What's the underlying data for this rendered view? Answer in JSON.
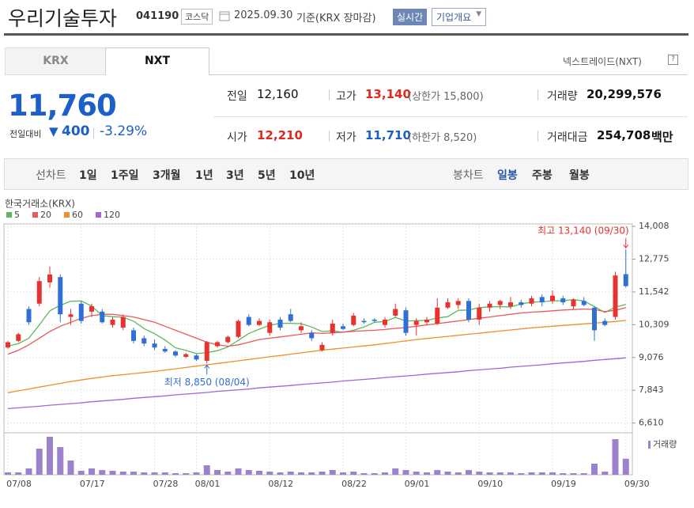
{
  "header": {
    "title": "우리기술투자",
    "code": "041190",
    "market": "코스닥",
    "date": "2025.09.30",
    "basis": "기준(KRX 장마감)",
    "buttons": [
      "실시간",
      "기업개요"
    ]
  },
  "tabs": [
    "KRX",
    "NXT"
  ],
  "nxt_link": "넥스트레이드(NXT)",
  "quote": {
    "price": "11,760",
    "change_label": "전일대비",
    "change": "400",
    "change_rate": "-3.29%"
  },
  "stats": [
    {
      "label": "전일",
      "value": "12,160"
    },
    {
      "label": "고가",
      "value": "13,140",
      "note": "(상한가 15,800)"
    },
    {
      "label": "거래량",
      "value": "20,299,576"
    },
    {
      "label": "시가",
      "value": "12,210"
    },
    {
      "label": "저가",
      "value": "11,710",
      "note": "(하한가 8,520)"
    },
    {
      "label": "거래대금",
      "value": "254,708",
      "unit": "백만"
    }
  ],
  "periods": {
    "line_label": "선차트",
    "line": [
      "1일",
      "1주일",
      "3개월",
      "1년",
      "3년",
      "5년",
      "10년"
    ],
    "candle_label": "봉차트",
    "candle": [
      "일봉",
      "주봉",
      "월봉"
    ]
  },
  "chart_data": {
    "type": "candlestick",
    "source": "한국거래소(KRX)",
    "categories": [
      "07/08",
      null,
      null,
      null,
      null,
      null,
      null,
      "07/17",
      null,
      null,
      null,
      null,
      null,
      null,
      "07/28",
      null,
      null,
      null,
      "08/01",
      null,
      null,
      null,
      null,
      null,
      null,
      "08/12",
      null,
      null,
      null,
      null,
      null,
      null,
      "08/22",
      null,
      null,
      null,
      null,
      null,
      "09/01",
      null,
      null,
      null,
      null,
      null,
      null,
      "09/10",
      null,
      null,
      null,
      null,
      null,
      null,
      "09/19",
      null,
      null,
      null,
      null,
      null,
      null,
      "09/30"
    ],
    "open": [
      9450,
      9700,
      10900,
      11100,
      11900,
      12100,
      10600,
      11100,
      10800,
      10800,
      10300,
      10200,
      10100,
      9800,
      9600,
      9400,
      9300,
      9100,
      9150,
      8950,
      9500,
      9650,
      9850,
      10600,
      10300,
      10000,
      10500,
      10700,
      10100,
      10000,
      9350,
      10000,
      10250,
      10300,
      10450,
      10500,
      10300,
      10650,
      10850,
      10300,
      10400,
      10350,
      10950,
      11050,
      11200,
      10500,
      10950,
      11050,
      11000,
      11150,
      11100,
      11350,
      11200,
      11300,
      11000,
      11200,
      10950,
      10450,
      10600,
      12210
    ],
    "high": [
      9700,
      10000,
      11000,
      12100,
      12500,
      12200,
      10900,
      11200,
      11100,
      10900,
      10600,
      10700,
      10200,
      9900,
      9750,
      9500,
      9350,
      9250,
      9200,
      9700,
      9700,
      9900,
      10500,
      10700,
      10550,
      10500,
      10600,
      10900,
      10400,
      10100,
      9650,
      10500,
      10350,
      10750,
      10550,
      10550,
      10600,
      11100,
      10950,
      10550,
      10600,
      11300,
      11300,
      11300,
      11300,
      11100,
      11200,
      11250,
      11350,
      11250,
      11400,
      11450,
      11600,
      11400,
      11300,
      11350,
      11000,
      10550,
      12300,
      13140
    ],
    "low": [
      9400,
      9650,
      10300,
      11000,
      11700,
      10400,
      10300,
      10350,
      10600,
      10350,
      10200,
      10100,
      9600,
      9500,
      9350,
      9250,
      9100,
      9050,
      8950,
      8850,
      9450,
      9600,
      9800,
      10250,
      10250,
      9900,
      10100,
      10400,
      10000,
      9700,
      9300,
      9900,
      10100,
      10250,
      10350,
      10400,
      10200,
      10600,
      9900,
      9900,
      10300,
      10300,
      10900,
      10900,
      10400,
      10300,
      10800,
      10900,
      10900,
      10950,
      11000,
      11000,
      11100,
      11050,
      10900,
      11000,
      9700,
      10250,
      10500,
      11710
    ],
    "close": [
      9650,
      9950,
      10400,
      11950,
      12200,
      10700,
      10700,
      10450,
      11000,
      10400,
      10500,
      10600,
      9700,
      9600,
      9450,
      9300,
      9150,
      9200,
      9000,
      9650,
      9650,
      9850,
      10450,
      10300,
      10450,
      10400,
      10200,
      10450,
      10250,
      9800,
      9550,
      10350,
      10150,
      10650,
      10400,
      10450,
      10500,
      10900,
      10000,
      10450,
      10500,
      10950,
      11150,
      11200,
      10500,
      10950,
      11100,
      11200,
      11150,
      11050,
      11300,
      11150,
      11400,
      11150,
      11250,
      11050,
      10100,
      10300,
      12160,
      11760
    ],
    "up_color": "#e8322f",
    "down_color": "#2f6fd6",
    "ma": [
      {
        "name": "5",
        "color": "#5cb85c",
        "values": [
          9500,
          9600,
          9800,
          10300,
          10830,
          11040,
          11190,
          11200,
          11010,
          10650,
          10610,
          10590,
          10440,
          10160,
          9970,
          9730,
          9440,
          9340,
          9220,
          9260,
          9330,
          9470,
          9720,
          9980,
          10140,
          10290,
          10360,
          10360,
          10350,
          10220,
          10050,
          10080,
          10020,
          10100,
          10220,
          10400,
          10430,
          10580,
          10450,
          10460,
          10470,
          10560,
          10610,
          10850,
          10860,
          10950,
          10980,
          10990,
          10980,
          11090,
          11160,
          11170,
          11210,
          11210,
          11250,
          11200,
          10990,
          10770,
          10970,
          11070
        ]
      },
      {
        "name": "20",
        "color": "#e85a5a",
        "values": [
          9200,
          9350,
          9550,
          9800,
          10050,
          10250,
          10400,
          10550,
          10650,
          10700,
          10700,
          10650,
          10600,
          10500,
          10400,
          10250,
          10100,
          9950,
          9800,
          9650,
          9550,
          9500,
          9550,
          9650,
          9750,
          9800,
          9850,
          9900,
          9950,
          10000,
          9980,
          10000,
          10030,
          10060,
          10080,
          10100,
          10130,
          10170,
          10200,
          10250,
          10300,
          10350,
          10400,
          10450,
          10500,
          10550,
          10600,
          10650,
          10700,
          10750,
          10780,
          10800,
          10830,
          10860,
          10880,
          10900,
          10880,
          10800,
          10850,
          10950
        ]
      },
      {
        "name": "60",
        "color": "#f0902c",
        "values": [
          7750,
          7820,
          7890,
          7960,
          8030,
          8100,
          8170,
          8230,
          8290,
          8340,
          8390,
          8430,
          8470,
          8510,
          8550,
          8600,
          8650,
          8700,
          8750,
          8800,
          8850,
          8900,
          8950,
          9000,
          9050,
          9100,
          9150,
          9200,
          9250,
          9300,
          9350,
          9390,
          9430,
          9470,
          9510,
          9550,
          9600,
          9650,
          9700,
          9750,
          9790,
          9830,
          9870,
          9910,
          9950,
          9990,
          10030,
          10070,
          10110,
          10150,
          10190,
          10220,
          10250,
          10280,
          10310,
          10340,
          10370,
          10400,
          10430,
          10470
        ]
      },
      {
        "name": "120",
        "color": "#a066d3",
        "values": [
          7150,
          7180,
          7210,
          7240,
          7280,
          7310,
          7340,
          7370,
          7410,
          7440,
          7470,
          7500,
          7540,
          7570,
          7600,
          7630,
          7670,
          7700,
          7730,
          7760,
          7800,
          7830,
          7860,
          7890,
          7930,
          7960,
          7990,
          8020,
          8060,
          8090,
          8120,
          8150,
          8190,
          8220,
          8250,
          8280,
          8320,
          8350,
          8380,
          8410,
          8450,
          8480,
          8510,
          8540,
          8580,
          8610,
          8640,
          8670,
          8710,
          8740,
          8770,
          8800,
          8840,
          8870,
          8900,
          8930,
          8970,
          9000,
          9030,
          9060
        ]
      }
    ],
    "volume": {
      "name": "거래량",
      "color": "#9c82cc",
      "values": [
        3000000,
        3000000,
        8000000,
        33000000,
        48000000,
        35000000,
        18000000,
        5000000,
        8000000,
        6000000,
        5000000,
        4000000,
        4000000,
        3000000,
        3000000,
        3000000,
        2000000,
        2000000,
        3000000,
        12000000,
        6000000,
        4000000,
        8000000,
        6000000,
        5000000,
        4000000,
        3000000,
        4000000,
        3000000,
        3000000,
        4000000,
        6000000,
        3000000,
        4000000,
        2000000,
        2000000,
        3000000,
        8000000,
        6000000,
        4000000,
        3000000,
        6000000,
        4000000,
        3000000,
        6000000,
        4000000,
        3000000,
        3000000,
        3000000,
        2000000,
        3000000,
        3000000,
        3000000,
        2000000,
        2000000,
        2000000,
        14000000,
        4000000,
        45000000,
        20299576
      ]
    },
    "ylim": [
      6300,
      14100
    ],
    "yticks": [
      {
        "value": 6610,
        "label": "6,610"
      },
      {
        "value": 7843,
        "label": "7,843"
      },
      {
        "value": 9076,
        "label": "9,076"
      },
      {
        "value": 10309,
        "label": "10,309"
      },
      {
        "value": 11542,
        "label": "11,542"
      },
      {
        "value": 12775,
        "label": "12,775"
      },
      {
        "value": 14008,
        "label": "14,008"
      }
    ],
    "grid": true,
    "annotations": {
      "high": "최고 13,140 (09/30)",
      "low": "최저 8,850 (08/04)"
    }
  }
}
